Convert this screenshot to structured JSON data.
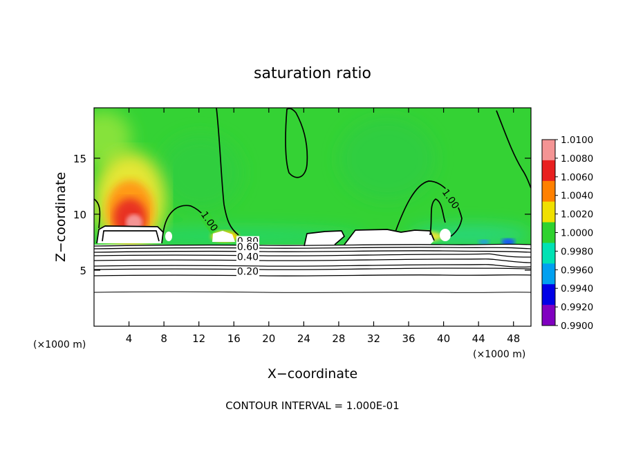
{
  "chart_data": {
    "type": "contour",
    "title": "saturation ratio",
    "xlabel": "X−coordinate",
    "ylabel": "Z−coordinate",
    "x_unit_left": "(×1000 m)",
    "x_unit_right": "(×1000 m)",
    "xlim": [
      0,
      50
    ],
    "ylim": [
      0,
      19.5
    ],
    "x_ticks": [
      4,
      8,
      12,
      16,
      20,
      24,
      28,
      32,
      36,
      40,
      44,
      48
    ],
    "x_tick_labels": [
      "4",
      "8",
      "12",
      "16",
      "20",
      "24",
      "28",
      "32",
      "36",
      "40",
      "44",
      "48"
    ],
    "y_ticks": [
      5,
      10,
      15
    ],
    "y_tick_labels": [
      "5",
      "10",
      "15"
    ],
    "colorbar": {
      "range": [
        0.99,
        1.01
      ],
      "levels": [
        "1.0100",
        "1.0080",
        "1.0060",
        "1.0040",
        "1.0020",
        "1.0000",
        "0.9980",
        "0.9960",
        "0.9940",
        "0.9920",
        "0.9900"
      ],
      "colors": [
        "#f49494",
        "#e82020",
        "#ff8000",
        "#f0e000",
        "#2fd22f",
        "#00e2b4",
        "#00a0f0",
        "#0000e6",
        "#8000c0"
      ]
    },
    "contour_labels": [
      {
        "text": "1.00",
        "x": 12.9,
        "z": 9.2
      },
      {
        "text": "1.00",
        "x": 40.5,
        "z": 11.2
      },
      {
        "text": "0.80",
        "x": 17.6,
        "z": 7.3
      },
      {
        "text": "0.60",
        "x": 17.6,
        "z": 6.8
      },
      {
        "text": "0.40",
        "x": 17.6,
        "z": 5.9
      },
      {
        "text": "0.20",
        "x": 17.6,
        "z": 4.6
      }
    ],
    "footer": "CONTOUR INTERVAL = 1.000E-01"
  }
}
